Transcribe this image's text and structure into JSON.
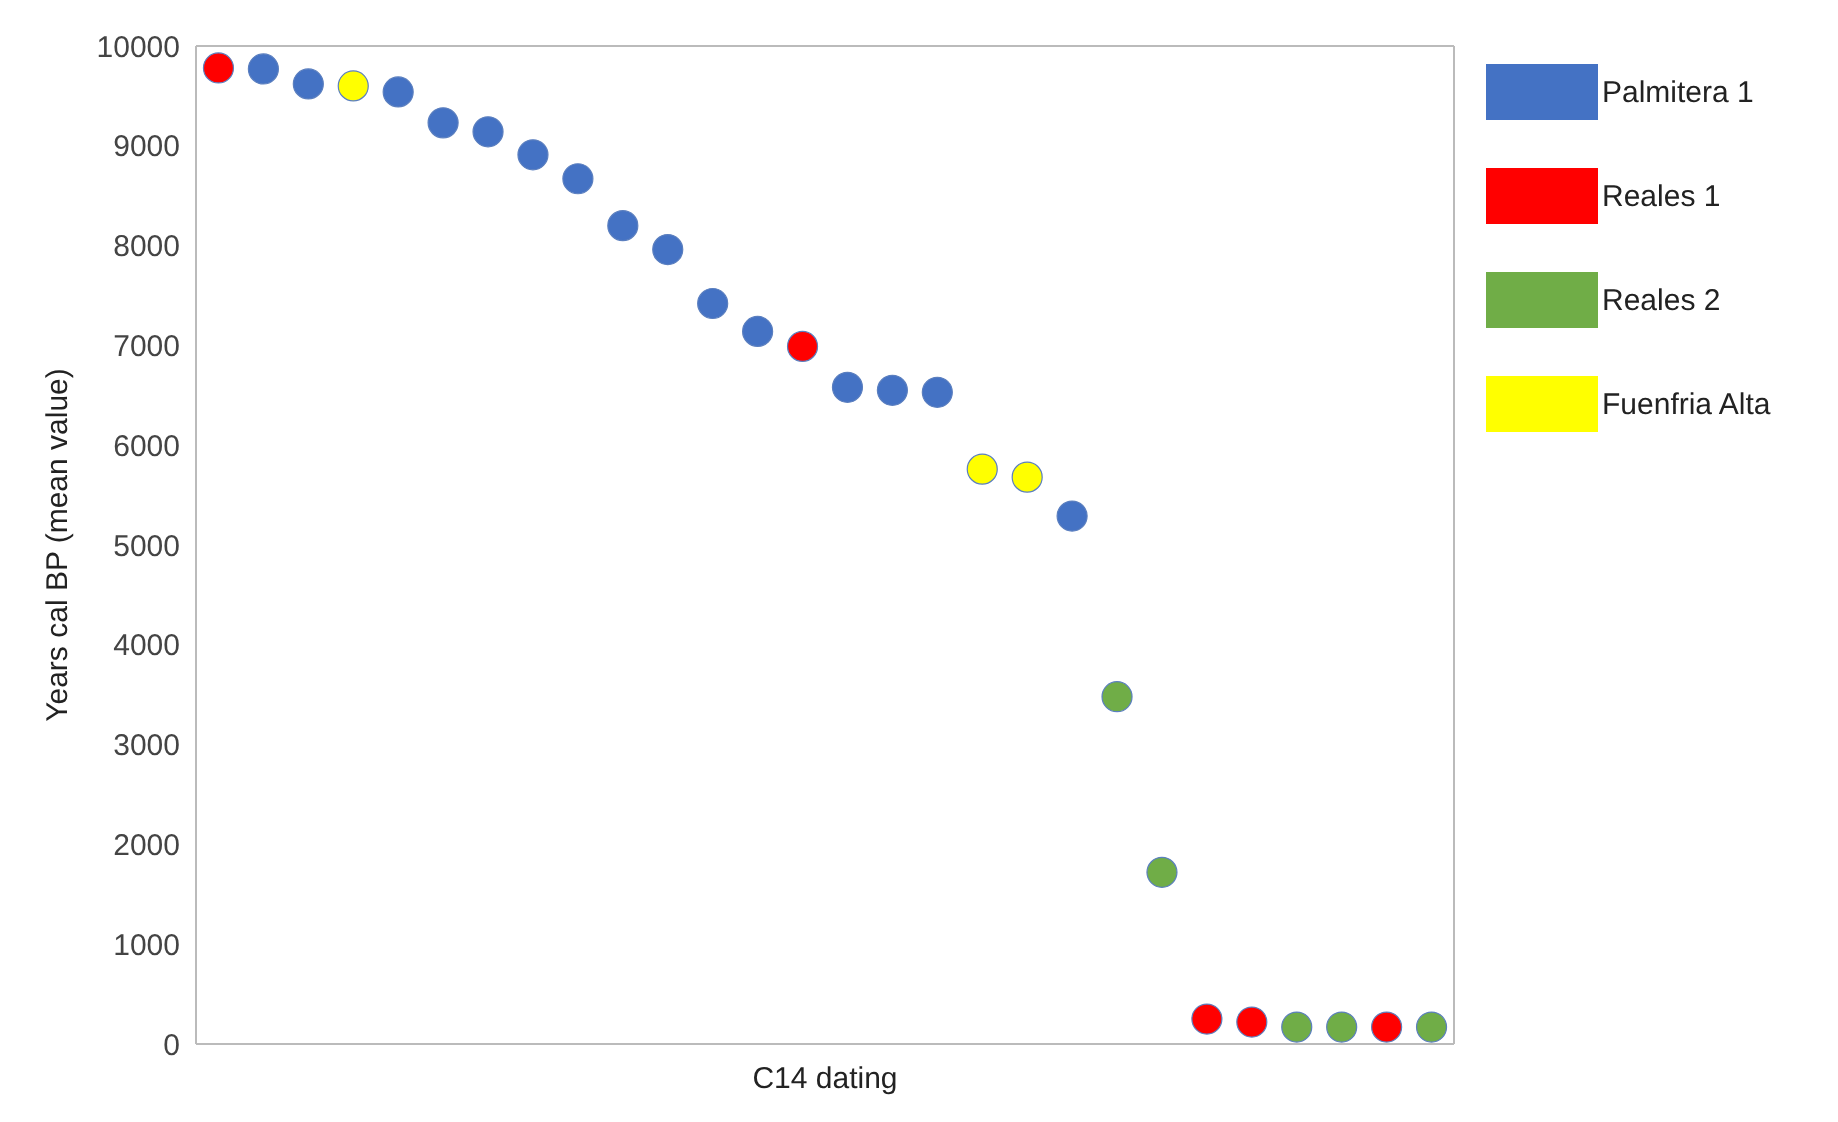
{
  "chart_data": {
    "type": "scatter",
    "xlabel": "C14 dating",
    "ylabel": "Years cal BP (mean value)",
    "categories": [
      null,
      null,
      null,
      null,
      null,
      null,
      null,
      null,
      null,
      null,
      null,
      null,
      null,
      null,
      null,
      null,
      null,
      null,
      null,
      null,
      null,
      null,
      null,
      null,
      null,
      null,
      null,
      null
    ],
    "series": [
      {
        "name": "Palmitera 1",
        "color": "#4472c4",
        "values": [
          null,
          9770,
          9620,
          null,
          9540,
          9230,
          9140,
          8910,
          8670,
          8200,
          7960,
          7420,
          7140,
          null,
          6580,
          6550,
          6530,
          null,
          null,
          5290,
          null,
          null,
          null,
          null,
          null,
          null,
          null,
          null
        ]
      },
      {
        "name": "Reales 1",
        "color": "#ff0000",
        "values": [
          9780,
          null,
          null,
          null,
          null,
          null,
          null,
          null,
          null,
          null,
          null,
          null,
          null,
          6990,
          null,
          null,
          null,
          null,
          null,
          null,
          null,
          null,
          250,
          220,
          null,
          null,
          170,
          null
        ]
      },
      {
        "name": "Reales 2",
        "color": "#70ad47",
        "values": [
          null,
          null,
          null,
          null,
          null,
          null,
          null,
          null,
          null,
          null,
          null,
          null,
          null,
          null,
          null,
          null,
          null,
          null,
          null,
          null,
          3480,
          1720,
          null,
          null,
          170,
          170,
          null,
          170
        ]
      },
      {
        "name": "Fuenfria Alta",
        "color": "#ffff00",
        "values": [
          null,
          null,
          null,
          9600,
          null,
          null,
          null,
          null,
          null,
          null,
          null,
          null,
          null,
          null,
          null,
          null,
          null,
          5760,
          5680,
          null,
          null,
          null,
          null,
          null,
          null,
          null,
          null,
          null
        ]
      }
    ],
    "ylim": [
      0,
      10000
    ],
    "yticks": [
      0,
      1000,
      2000,
      3000,
      4000,
      5000,
      6000,
      7000,
      8000,
      9000,
      10000
    ],
    "grid": false,
    "legend": "right",
    "marker": "circle"
  }
}
